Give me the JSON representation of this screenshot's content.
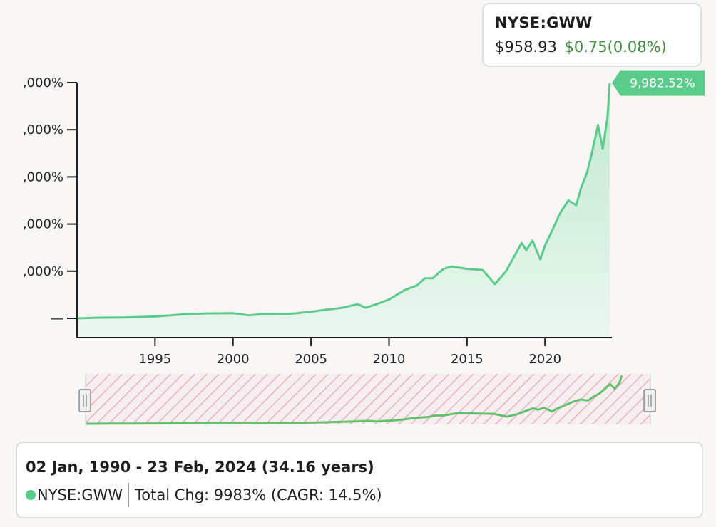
{
  "ticker": {
    "symbol": "NYSE:GWW",
    "price": "$958.93",
    "change": "$0.75(0.08%)"
  },
  "colors": {
    "line": "#5bcb8c",
    "area_top": "#bfe9cf",
    "area_bottom": "#eaf7ef",
    "change_positive": "#3d8a3d",
    "navigator_line": "#62c26a",
    "navigator_hatch": "#e6a6b0"
  },
  "summary": {
    "range": "02 Jan, 1990 - 23 Feb, 2024 (34.16 years)",
    "symbol": "NYSE:GWW",
    "total_change": "Total Chg: 9983% (CAGR: 14.5%)"
  },
  "chart_data": {
    "type": "area",
    "x_unit": "year",
    "xlim": [
      1990.0,
      2024.15
    ],
    "xticks": [
      1995,
      2000,
      2005,
      2010,
      2015,
      2020
    ],
    "xtick_labels": [
      "1995",
      "2000",
      "2005",
      "2010",
      "2015",
      "2020"
    ],
    "ylim": [
      0,
      10000
    ],
    "yticks": [
      0,
      2000,
      4000,
      6000,
      8000,
      10000
    ],
    "ytick_labels": [
      "—",
      ",000%",
      ",000%",
      ",000%",
      ",000%",
      ",000%"
    ],
    "end_label": "9,982.52%",
    "grid": false,
    "legend": "none",
    "series": [
      {
        "x": [
          1990.0,
          1991.5,
          1993.0,
          1995.0,
          1997.0,
          1998.5,
          2000.0,
          2001.0,
          2002.0,
          2003.5,
          2005.0,
          2006.0,
          2007.0,
          2008.0,
          2008.5,
          2009.2,
          2010.0,
          2011.0,
          2011.8,
          2012.3,
          2012.8,
          2013.5,
          2014.0,
          2015.0,
          2016.0,
          2016.8,
          2017.5,
          2018.0,
          2018.5,
          2018.8,
          2019.2,
          2019.7,
          2020.0,
          2020.3,
          2021.0,
          2021.5,
          2022.0,
          2022.3,
          2022.7,
          2023.0,
          2023.4,
          2023.7,
          2024.0,
          2024.15
        ],
        "values": [
          0,
          30,
          40,
          80,
          180,
          210,
          220,
          130,
          190,
          180,
          280,
          370,
          450,
          600,
          450,
          600,
          800,
          1200,
          1400,
          1700,
          1700,
          2100,
          2200,
          2100,
          2050,
          1450,
          2000,
          2600,
          3200,
          2900,
          3300,
          2500,
          3100,
          3500,
          4500,
          5000,
          4800,
          5500,
          6200,
          7000,
          8200,
          7200,
          8500,
          9982.52
        ]
      }
    ]
  }
}
